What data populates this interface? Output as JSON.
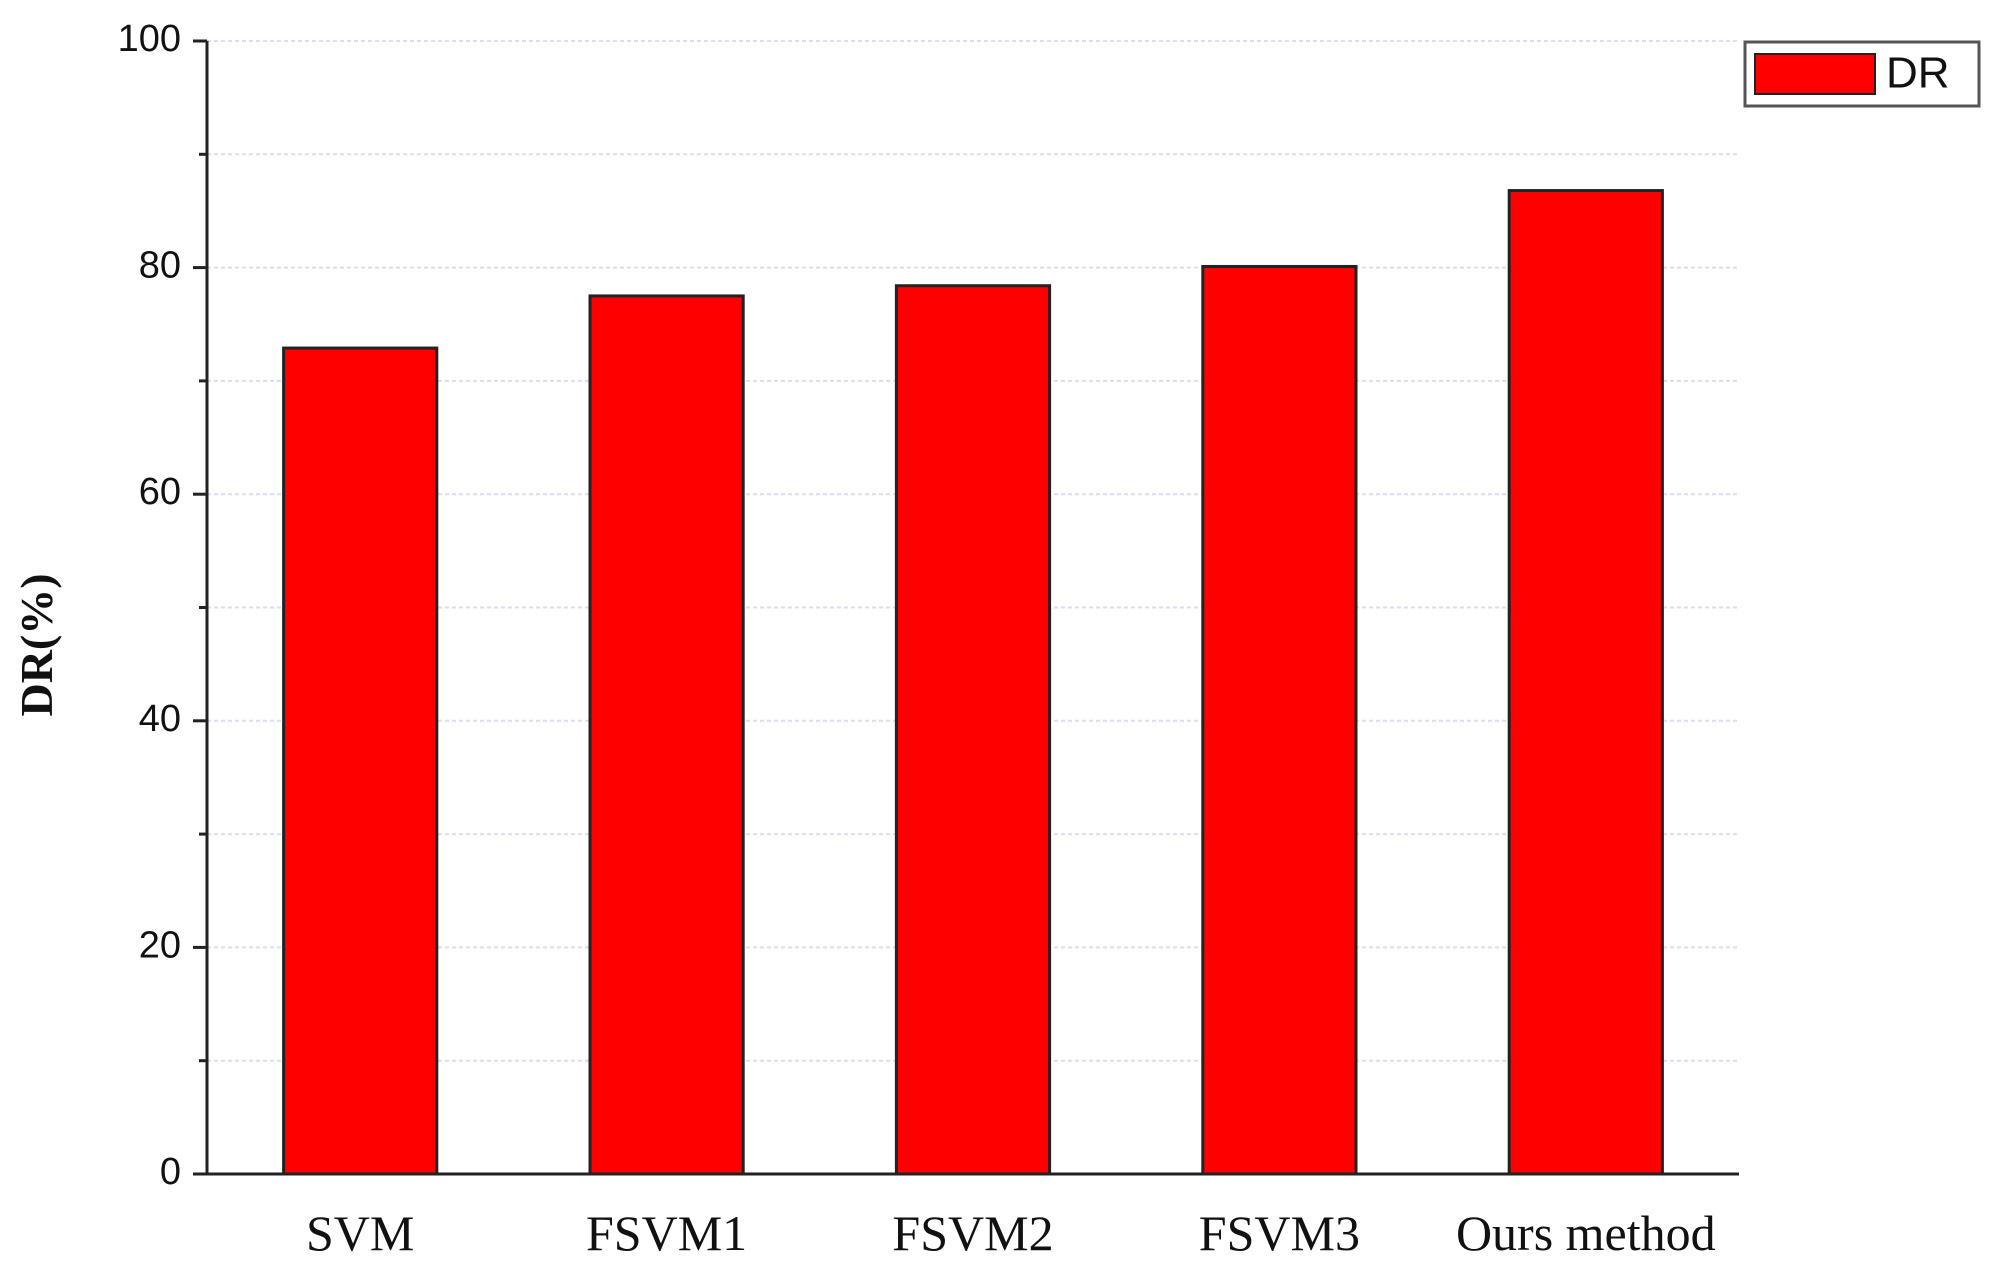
{
  "chart_data": {
    "type": "bar",
    "categories": [
      "SVM",
      "FSVM1",
      "FSVM2",
      "FSVM3",
      "Ours method"
    ],
    "series": [
      {
        "name": "DR",
        "color": "#ff0000",
        "values": [
          72.9,
          77.5,
          78.4,
          80.1,
          86.8
        ]
      }
    ],
    "y_label": "DR(%)",
    "ylim": [
      0,
      100
    ],
    "yticks": [
      0,
      20,
      40,
      60,
      80,
      100
    ],
    "minor_yticks": [
      10,
      30,
      50,
      70,
      90
    ],
    "grid": true,
    "legend": "top-right"
  }
}
